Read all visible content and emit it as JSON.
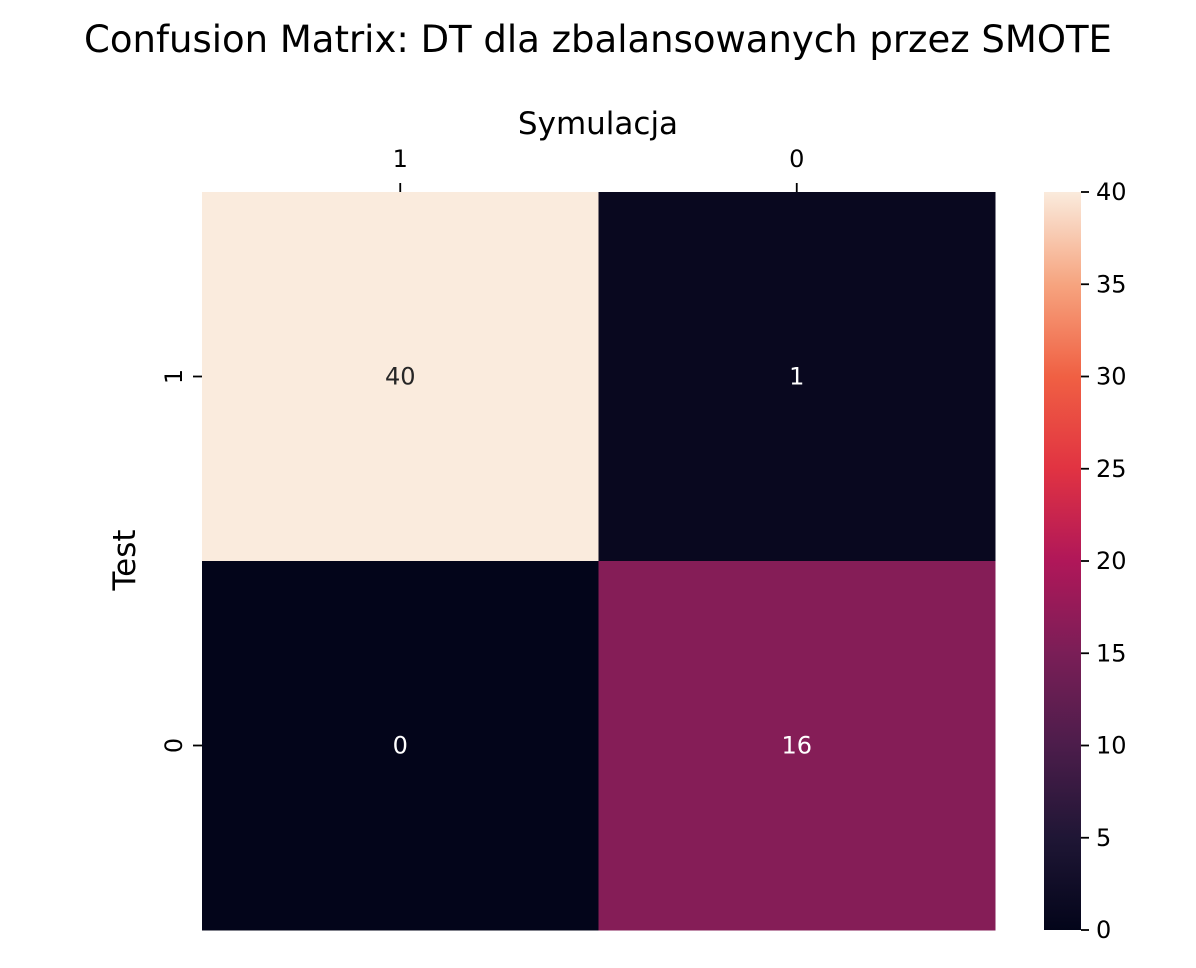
{
  "chart_data": {
    "type": "heatmap",
    "title": "Confusion Matrix: DT dla zbalansowanych przez SMOTE",
    "xlabel": "Symulacja",
    "ylabel": "Test",
    "x_categories": [
      "1",
      "0"
    ],
    "y_categories": [
      "1",
      "0"
    ],
    "values": [
      [
        40,
        1
      ],
      [
        0,
        16
      ]
    ],
    "annotations": [
      [
        "40",
        "1"
      ],
      [
        "0",
        "16"
      ]
    ],
    "x_axis_position": "top",
    "colorbar": {
      "range": [
        0,
        40
      ],
      "ticks": [
        0,
        5,
        10,
        15,
        20,
        25,
        30,
        35,
        40
      ],
      "tick_labels": [
        "0",
        "5",
        "10",
        "15",
        "20",
        "25",
        "30",
        "35",
        "40"
      ],
      "colormap": "rocket",
      "position": "right"
    },
    "grid": false
  }
}
